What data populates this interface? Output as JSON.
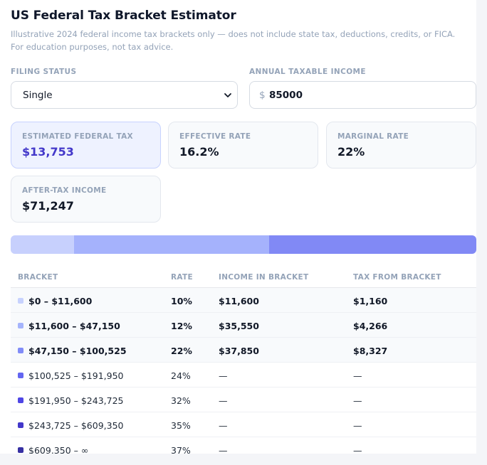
{
  "header": {
    "title": "US Federal Tax Bracket Estimator",
    "subtitle": "Illustrative 2024 federal income tax brackets only — does not include state tax, deductions, credits, or FICA. For education purposes, not tax advice."
  },
  "form": {
    "filing_status_label": "FILING STATUS",
    "filing_status_value": "Single",
    "income_label": "ANNUAL TAXABLE INCOME",
    "currency_symbol": "$",
    "income_value": "85000"
  },
  "summary": {
    "estimated_tax_label": "ESTIMATED FEDERAL TAX",
    "estimated_tax_value": "$13,753",
    "effective_rate_label": "EFFECTIVE RATE",
    "effective_rate_value": "16.2%",
    "marginal_rate_label": "MARGINAL RATE",
    "marginal_rate_value": "22%",
    "after_tax_label": "AFTER-TAX INCOME",
    "after_tax_value": "$71,247"
  },
  "bracket_bar": {
    "segments": [
      {
        "fraction": 0.1365,
        "color": "#c7d0fd"
      },
      {
        "fraction": 0.4182,
        "color": "#a5b2fc"
      },
      {
        "fraction": 0.4453,
        "color": "#8189f5"
      }
    ]
  },
  "table": {
    "headers": [
      "BRACKET",
      "RATE",
      "INCOME IN BRACKET",
      "TAX FROM BRACKET"
    ],
    "rows": [
      {
        "range": "$0 – $11,600",
        "rate": "10%",
        "income": "$11,600",
        "tax": "$1,160",
        "color": "#c7d2fe",
        "active": true
      },
      {
        "range": "$11,600 – $47,150",
        "rate": "12%",
        "income": "$35,550",
        "tax": "$4,266",
        "color": "#a5b4fc",
        "active": true
      },
      {
        "range": "$47,150 – $100,525",
        "rate": "22%",
        "income": "$37,850",
        "tax": "$8,327",
        "color": "#818cf8",
        "active": true
      },
      {
        "range": "$100,525 – $191,950",
        "rate": "24%",
        "income": "—",
        "tax": "—",
        "color": "#6366f1",
        "active": false
      },
      {
        "range": "$191,950 – $243,725",
        "rate": "32%",
        "income": "—",
        "tax": "—",
        "color": "#4f46e5",
        "active": false
      },
      {
        "range": "$243,725 – $609,350",
        "rate": "35%",
        "income": "—",
        "tax": "—",
        "color": "#4338ca",
        "active": false
      },
      {
        "range": "$609,350 – ∞",
        "rate": "37%",
        "income": "—",
        "tax": "—",
        "color": "#3730a3",
        "active": false
      }
    ]
  }
}
